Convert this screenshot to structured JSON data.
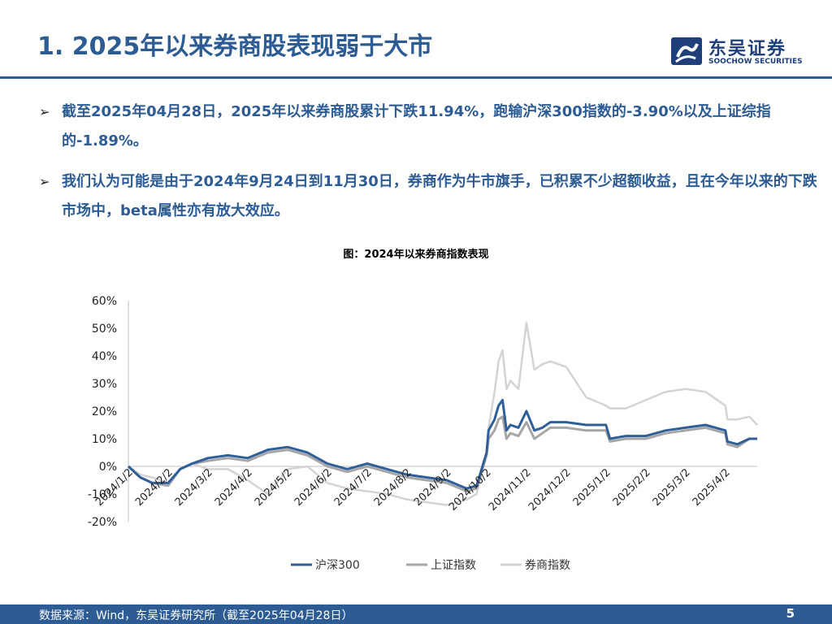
{
  "header": {
    "title": "1. 2025年以来券商股表现弱于大市",
    "logo_cn": "东吴证券",
    "logo_en": "SOOCHOW SECURITIES"
  },
  "bullets": [
    "截至2025年04月28日，2025年以来券商股累计下跌11.94%，跑输沪深300指数的-3.90%以及上证综指的-1.89%。",
    "我们认为可能是由于2024年9月24日到11月30日，券商作为牛市旗手，已积累不少超额收益，且在今年以来的下跌市场中，beta属性亦有放大效应。"
  ],
  "colors": {
    "brand": "#2c5c93",
    "hs300": "#2f5e98",
    "sz": "#a6a6a6",
    "broker": "#d4d4d4"
  },
  "chart_data": {
    "type": "line",
    "title": "图：2024年以来券商指数表现",
    "xlabel": "",
    "ylabel": "",
    "ylim": [
      -20,
      60
    ],
    "yticks": [
      "60%",
      "50%",
      "40%",
      "30%",
      "20%",
      "10%",
      "0%",
      "-10%",
      "-20%"
    ],
    "x_ticks": [
      "2024/1/2",
      "2024/2/2",
      "2024/3/2",
      "2024/4/2",
      "2024/5/2",
      "2024/6/2",
      "2024/7/2",
      "2024/8/2",
      "2024/9/2",
      "2024/10/2",
      "2024/11/2",
      "2024/12/2",
      "2025/1/2",
      "2025/2/2",
      "2025/3/2",
      "2025/4/2"
    ],
    "legend_position": "bottom",
    "grid": false,
    "x": [
      0,
      0.3,
      0.6,
      1,
      1.3,
      1.6,
      2,
      2.5,
      3,
      3.5,
      4,
      4.5,
      5,
      5.5,
      6,
      6.5,
      7,
      7.5,
      8,
      8.5,
      8.75,
      9,
      9.05,
      9.2,
      9.3,
      9.4,
      9.5,
      9.6,
      9.8,
      10,
      10.2,
      10.4,
      10.6,
      11,
      11.5,
      12,
      12.1,
      12.5,
      13,
      13.5,
      14,
      14.5,
      15,
      15.05,
      15.3,
      15.6,
      15.8
    ],
    "series": [
      {
        "name": "沪深300",
        "values": [
          0,
          -4,
          -6,
          -6,
          -1,
          1,
          3,
          4,
          3,
          6,
          7,
          5,
          1,
          -1,
          1,
          -1,
          -3,
          -4,
          -5,
          -8,
          -7,
          5,
          13,
          17,
          22,
          24,
          13,
          15,
          14,
          20,
          13,
          14,
          16,
          16,
          15,
          15,
          10,
          11,
          11,
          13,
          14,
          15,
          13,
          9,
          8,
          10,
          10
        ]
      },
      {
        "name": "上证指数",
        "values": [
          0,
          -4,
          -6,
          -7,
          -1,
          1,
          2,
          3,
          2,
          5,
          6,
          4,
          0,
          -2,
          0,
          -2,
          -4,
          -5,
          -6,
          -9,
          -8,
          4,
          10,
          13,
          17,
          18,
          10,
          12,
          11,
          16,
          10,
          12,
          14,
          14,
          13,
          13,
          9,
          10,
          10,
          12,
          13,
          14,
          12,
          8,
          7,
          10,
          10
        ]
      },
      {
        "name": "券商指数",
        "values": [
          0,
          -3,
          -4,
          -6,
          -1,
          1,
          -1,
          -1,
          -5,
          -10,
          -1,
          0,
          -6,
          -8,
          -9,
          -10,
          -12,
          -13,
          -14,
          -12,
          -10,
          5,
          14,
          27,
          38,
          42,
          28,
          31,
          28,
          52,
          35,
          37,
          38,
          36,
          25,
          22,
          21,
          21,
          24,
          27,
          28,
          27,
          22,
          17,
          17,
          18,
          15
        ]
      }
    ]
  },
  "footer": {
    "source": "数据来源：Wind，东吴证券研究所（截至2025年04月28日）",
    "page": "5"
  }
}
